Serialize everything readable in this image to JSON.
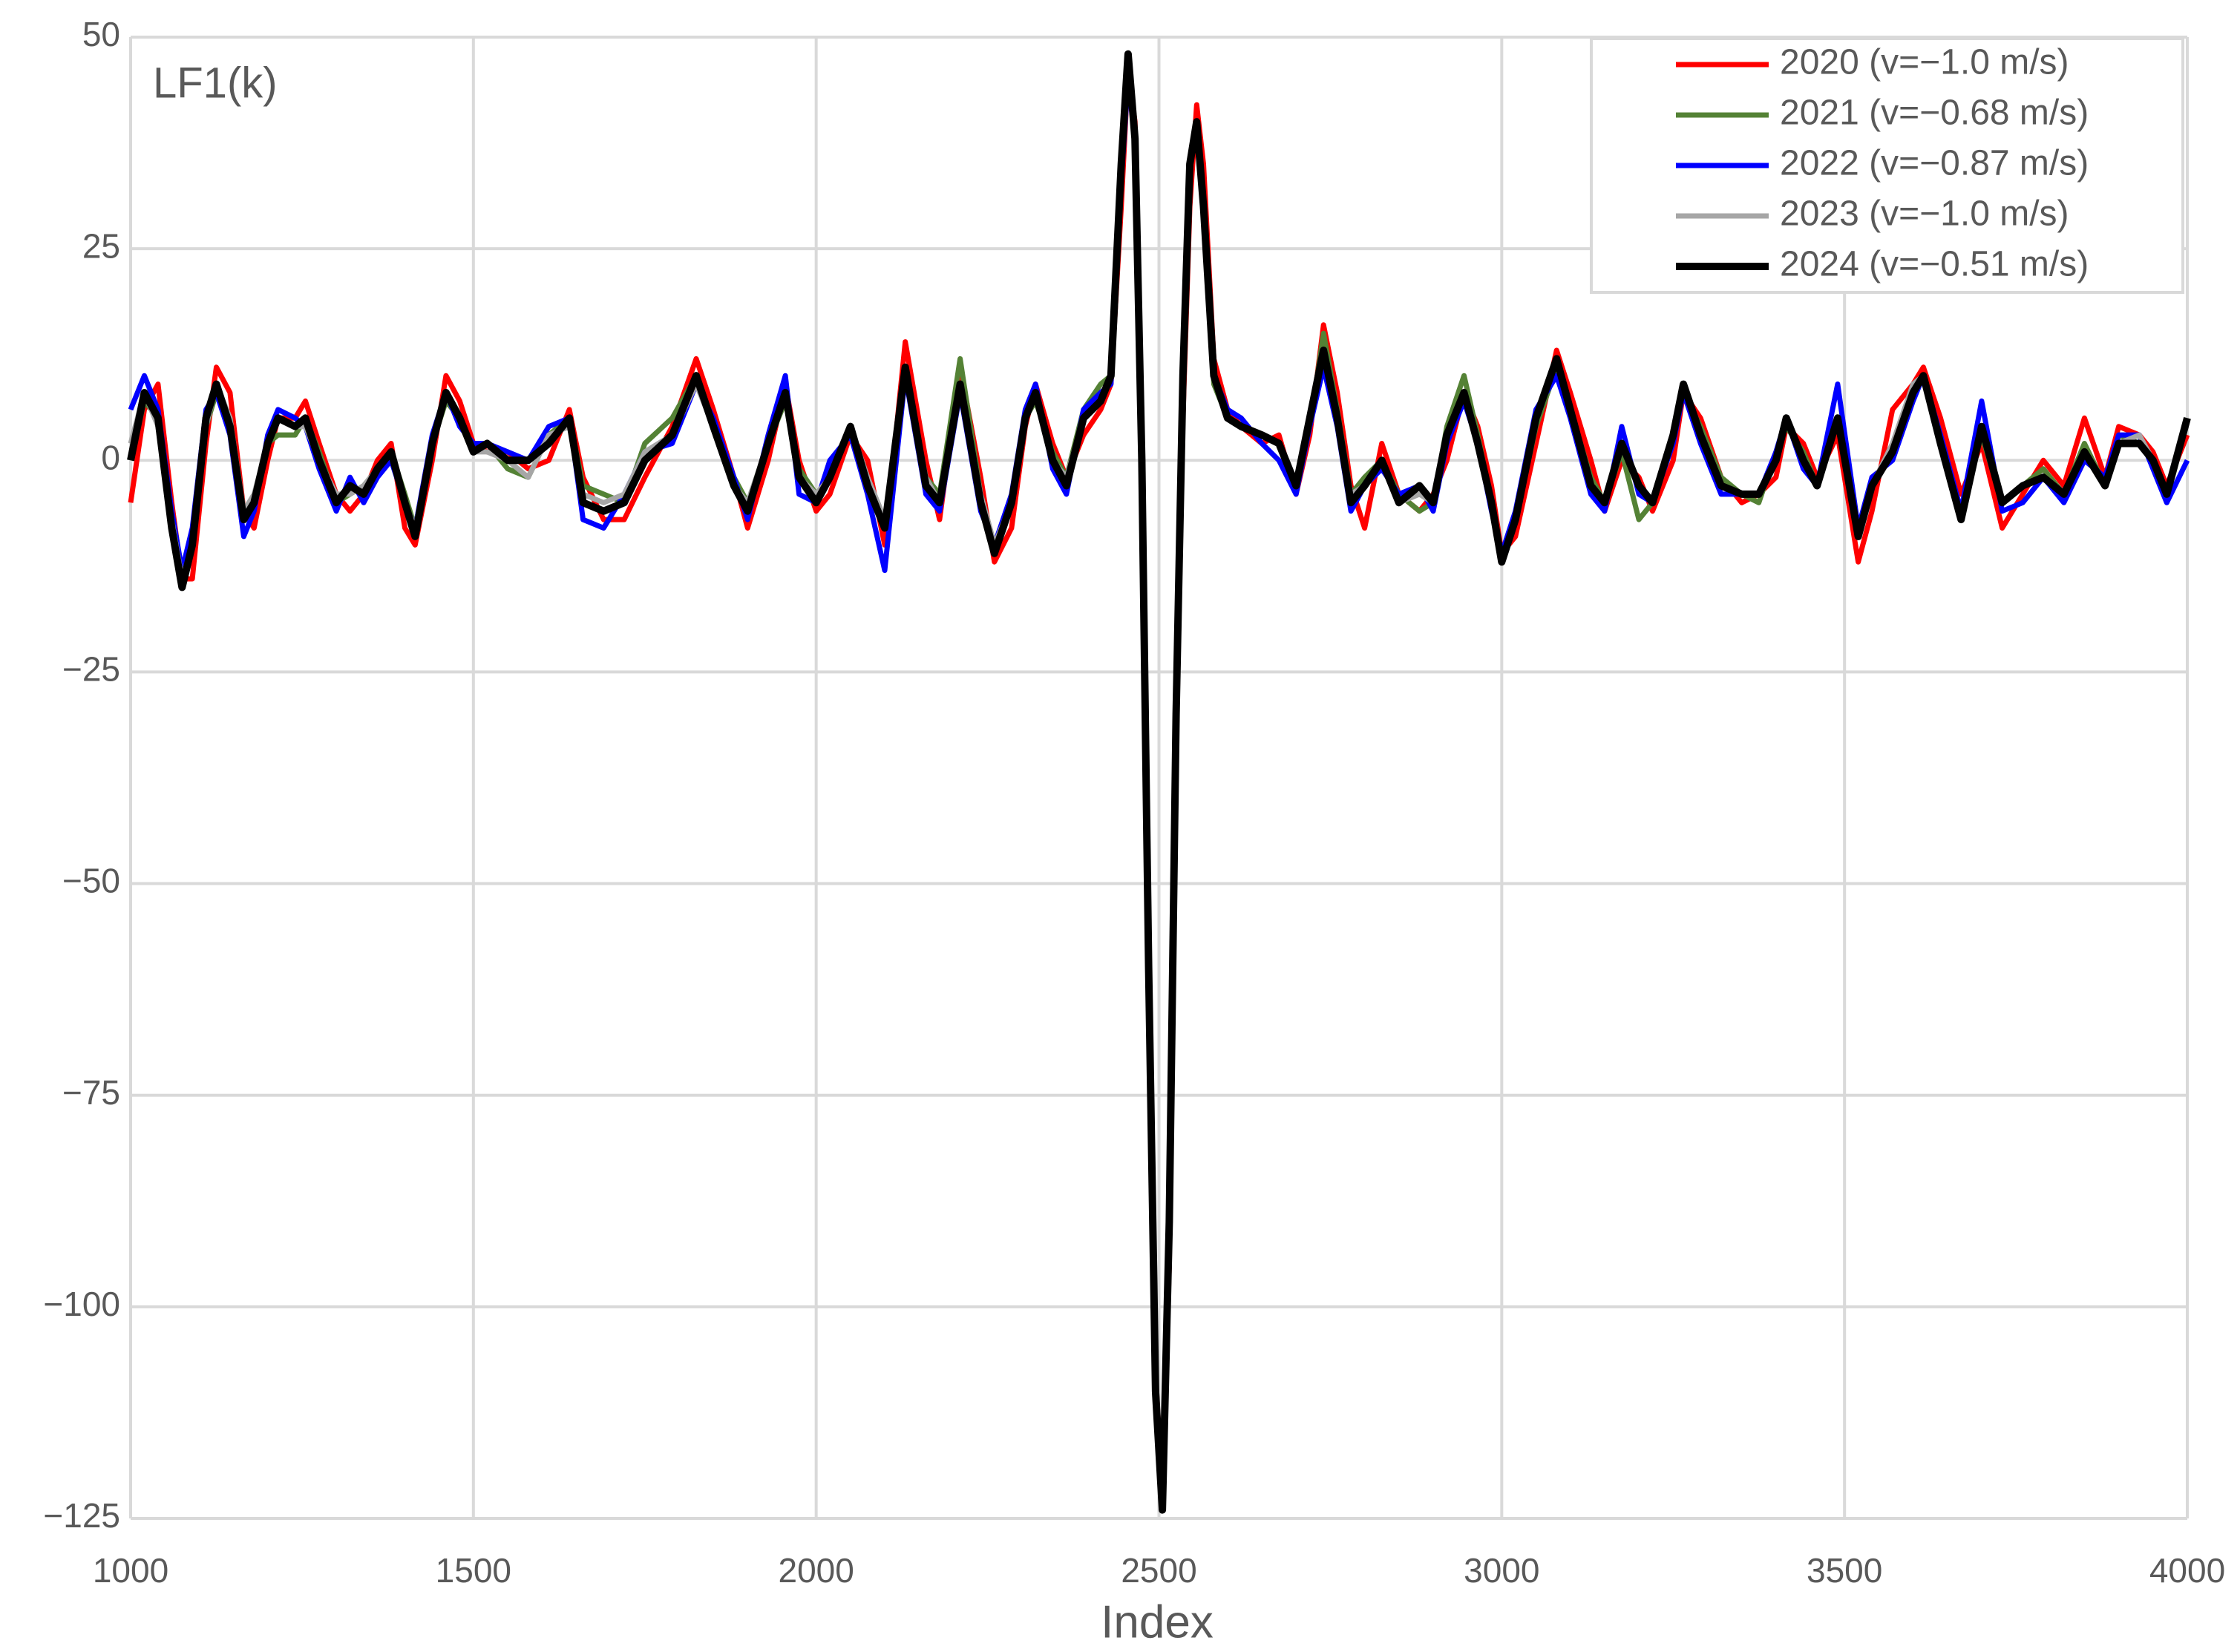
{
  "chart_data": {
    "type": "line",
    "annotation": "LF1(k)",
    "x_label": "Index",
    "x": [
      1000,
      1020,
      1040,
      1060,
      1075,
      1090,
      1110,
      1125,
      1145,
      1165,
      1180,
      1200,
      1215,
      1240,
      1255,
      1275,
      1300,
      1320,
      1340,
      1360,
      1380,
      1400,
      1415,
      1440,
      1460,
      1480,
      1500,
      1520,
      1550,
      1580,
      1610,
      1640,
      1660,
      1690,
      1720,
      1750,
      1790,
      1825,
      1850,
      1880,
      1900,
      1930,
      1955,
      1975,
      2000,
      2020,
      2050,
      2075,
      2100,
      2130,
      2160,
      2180,
      2210,
      2240,
      2260,
      2285,
      2305,
      2320,
      2345,
      2365,
      2390,
      2415,
      2430,
      2445,
      2455,
      2465,
      2475,
      2485,
      2495,
      2505,
      2515,
      2525,
      2535,
      2545,
      2555,
      2565,
      2580,
      2600,
      2620,
      2650,
      2675,
      2700,
      2720,
      2740,
      2760,
      2780,
      2800,
      2825,
      2850,
      2880,
      2900,
      2920,
      2945,
      2965,
      2985,
      3000,
      3020,
      3050,
      3080,
      3100,
      3130,
      3150,
      3175,
      3200,
      3220,
      3250,
      3265,
      3290,
      3320,
      3350,
      3375,
      3400,
      3415,
      3440,
      3460,
      3490,
      3520,
      3540,
      3570,
      3600,
      3615,
      3640,
      3670,
      3700,
      3730,
      3760,
      3790,
      3820,
      3850,
      3880,
      3900,
      3930,
      3950,
      3970,
      4000
    ],
    "series": [
      {
        "name": "2020 (v=−1.0 m/s)",
        "color": "#ff0000",
        "values": [
          -5,
          6,
          9,
          -5,
          -14,
          -14,
          2,
          11,
          8,
          -6,
          -8,
          0,
          5,
          5,
          7,
          2,
          -4,
          -6,
          -4,
          0,
          2,
          -8,
          -10,
          0,
          10,
          7,
          2,
          1,
          1,
          -1,
          0,
          6,
          -2,
          -7,
          -7,
          -2,
          4,
          12,
          6,
          -2,
          -8,
          0,
          9,
          0,
          -6,
          -4,
          3,
          0,
          -10,
          14,
          0,
          -7,
          11,
          -2,
          -12,
          -8,
          4,
          9,
          2,
          -2,
          3,
          6,
          9,
          30,
          46,
          40,
          5,
          -55,
          -108,
          -122,
          -95,
          -35,
          5,
          30,
          42,
          35,
          12,
          6,
          4,
          2,
          3,
          -4,
          3,
          16,
          8,
          -3,
          -8,
          2,
          -4,
          -6,
          -4,
          0,
          8,
          4,
          -3,
          -11,
          -9,
          2,
          13,
          8,
          0,
          -6,
          0,
          -2,
          -6,
          0,
          8,
          5,
          -2,
          -5,
          -4,
          -2,
          4,
          2,
          -2,
          3,
          -12,
          -6,
          6,
          9,
          11,
          5,
          -4,
          2,
          -8,
          -4,
          0,
          -3,
          5,
          -2,
          4,
          3,
          1,
          -3,
          3
        ]
      },
      {
        "name": "2021 (v=−0.68 m/s)",
        "color": "#548235",
        "values": [
          0,
          7,
          5,
          -7,
          -14,
          -9,
          4,
          8,
          5,
          -6,
          -5,
          2,
          3,
          3,
          5,
          1,
          -5,
          -4,
          -3,
          -1,
          1,
          -4,
          -8,
          2,
          7,
          5,
          1,
          2,
          -1,
          -2,
          3,
          5,
          -3,
          -4,
          -5,
          2,
          5,
          10,
          4,
          -2,
          -5,
          2,
          7,
          -1,
          -4,
          -2,
          4,
          -3,
          -8,
          10,
          -2,
          -4,
          12,
          -4,
          -10,
          -5,
          5,
          7,
          1,
          -2,
          6,
          9,
          10,
          34,
          47,
          38,
          1,
          -58,
          -109,
          -123,
          -90,
          -30,
          9,
          34,
          40,
          30,
          9,
          5,
          4,
          3,
          2,
          -3,
          4,
          15,
          6,
          -4,
          -2,
          0,
          -4,
          -6,
          -5,
          4,
          10,
          3,
          -5,
          -12,
          -7,
          4,
          11,
          6,
          -2,
          -5,
          1,
          -7,
          -5,
          3,
          8,
          4,
          -2,
          -4,
          -5,
          1,
          4,
          1,
          -3,
          5,
          -9,
          -3,
          1,
          9,
          10,
          2,
          -6,
          3,
          -5,
          -3,
          -1,
          -4,
          2,
          -3,
          3,
          2,
          0,
          -4,
          5
        ]
      },
      {
        "name": "2022 (v=−0.87 m/s)",
        "color": "#0000ff",
        "values": [
          6,
          10,
          6,
          -6,
          -13,
          -8,
          6,
          8,
          3,
          -9,
          -6,
          3,
          6,
          5,
          4,
          -1,
          -6,
          -2,
          -5,
          -2,
          0,
          -5,
          -8,
          3,
          8,
          4,
          2,
          2,
          1,
          0,
          4,
          5,
          -7,
          -8,
          -4,
          1,
          2,
          9,
          5,
          -2,
          -7,
          3,
          10,
          -4,
          -5,
          0,
          3,
          -4,
          -13,
          10,
          -4,
          -6,
          8,
          -6,
          -10,
          -4,
          6,
          9,
          -1,
          -4,
          6,
          8,
          9,
          33,
          45,
          38,
          0,
          -60,
          -110,
          -123,
          -90,
          -30,
          10,
          35,
          40,
          30,
          10,
          6,
          5,
          2,
          0,
          -4,
          4,
          11,
          4,
          -6,
          -3,
          -1,
          -4,
          -3,
          -6,
          2,
          7,
          2,
          -6,
          -11,
          -6,
          6,
          10,
          5,
          -4,
          -6,
          4,
          -4,
          -5,
          2,
          8,
          2,
          -4,
          -4,
          -4,
          1,
          5,
          -1,
          -3,
          9,
          -8,
          -2,
          0,
          7,
          10,
          3,
          -6,
          7,
          -6,
          -5,
          -2,
          -5,
          0,
          -2,
          3,
          3,
          -1,
          -5,
          0
        ]
      },
      {
        "name": "2023 (v=−1.0 m/s)",
        "color": "#a6a6a6",
        "values": [
          2,
          8,
          4,
          -7,
          -14,
          -10,
          4,
          9,
          5,
          -6,
          -4,
          2,
          5,
          4,
          4,
          0,
          -4,
          -4,
          -3,
          -1,
          1,
          -5,
          -8,
          2,
          8,
          5,
          1,
          1,
          0,
          -2,
          3,
          4,
          -4,
          -5,
          -4,
          1,
          3,
          9,
          4,
          -3,
          -5,
          2,
          8,
          -2,
          -4,
          -2,
          4,
          -2,
          -7,
          10,
          -2,
          -5,
          9,
          -4,
          -10,
          -5,
          5,
          8,
          0,
          -2,
          5,
          7,
          10,
          34,
          47,
          38,
          0,
          -59,
          -110,
          -123,
          -90,
          -30,
          10,
          35,
          40,
          30,
          10,
          5,
          4,
          3,
          2,
          -3,
          5,
          13,
          5,
          -4,
          -3,
          0,
          -5,
          -4,
          -5,
          3,
          8,
          2,
          -5,
          -12,
          -7,
          5,
          12,
          6,
          -3,
          -5,
          2,
          -3,
          -5,
          3,
          9,
          3,
          -3,
          -4,
          -4,
          0,
          5,
          0,
          -3,
          5,
          -9,
          -3,
          2,
          9,
          10,
          2,
          -7,
          4,
          -5,
          -3,
          -2,
          -4,
          1,
          -3,
          2,
          3,
          0,
          -4,
          5
        ]
      },
      {
        "name": "2024 (v=−0.51 m/s)",
        "color": "#000000",
        "values": [
          0,
          8,
          5,
          -8,
          -15,
          -10,
          5,
          9,
          4,
          -7,
          -5,
          2,
          5,
          4,
          5,
          0,
          -5,
          -3,
          -4,
          -1,
          1,
          -5,
          -9,
          2,
          8,
          5,
          1,
          2,
          0,
          0,
          2,
          5,
          -5,
          -6,
          -5,
          0,
          3,
          10,
          4,
          -3,
          -6,
          2,
          8,
          -2,
          -5,
          -2,
          4,
          -3,
          -8,
          11,
          -3,
          -5,
          9,
          -5,
          -11,
          -5,
          5,
          8,
          0,
          -3,
          5,
          7,
          10,
          35,
          48,
          38,
          0,
          -60,
          -110,
          -124,
          -90,
          -30,
          10,
          35,
          40,
          30,
          10,
          5,
          4,
          3,
          2,
          -3,
          5,
          13,
          5,
          -5,
          -3,
          0,
          -5,
          -3,
          -5,
          3,
          8,
          2,
          -5,
          -12,
          -7,
          5,
          12,
          6,
          -3,
          -5,
          2,
          -3,
          -5,
          3,
          9,
          3,
          -3,
          -4,
          -4,
          0,
          5,
          0,
          -3,
          5,
          -9,
          -3,
          1,
          8,
          10,
          2,
          -7,
          4,
          -5,
          -3,
          -2,
          -4,
          1,
          -3,
          2,
          2,
          0,
          -4,
          5
        ]
      }
    ],
    "xlim": [
      1000,
      4000
    ],
    "xticks": [
      1000,
      1500,
      2000,
      2500,
      3000,
      3500,
      4000
    ],
    "ylim": [
      -125,
      50
    ],
    "yticks": [
      {
        "value": -125,
        "label": "−125"
      },
      {
        "value": -100,
        "label": "−100"
      },
      {
        "value": -75,
        "label": "−75"
      },
      {
        "value": -50,
        "label": "−50"
      },
      {
        "value": -25,
        "label": "−25"
      },
      0,
      25,
      50
    ],
    "grid": true,
    "legend": "upper right"
  }
}
